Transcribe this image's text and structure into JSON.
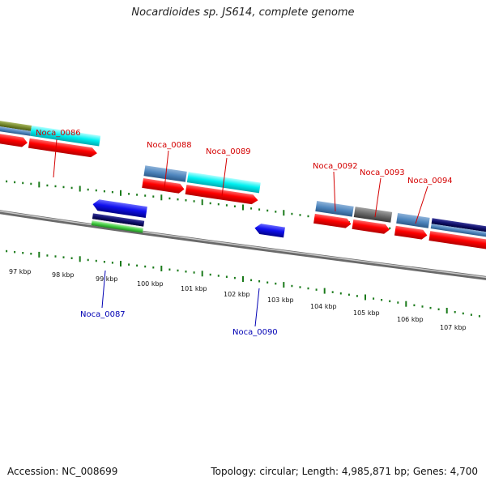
{
  "title": "Nocardioides sp. JS614, complete genome",
  "footer": {
    "accession": "Accession: NC_008699",
    "summary": "Topology: circular; Length: 4,985,871 bp; Genes: 4,700"
  },
  "colors": {
    "label_forward": "#d40000",
    "label_reverse": "#0000b4",
    "tick": "#1a7a1a",
    "backbone": "#8a8a8a"
  },
  "scale_labels": [
    "97 kbp",
    "98 kbp",
    "99 kbp",
    "100 kbp",
    "101 kbp",
    "102 kbp",
    "103 kbp",
    "104 kbp",
    "105 kbp",
    "106 kbp",
    "107 kbp"
  ],
  "gene_labels": {
    "forward": [
      "Noca_0086",
      "Noca_0088",
      "Noca_0089",
      "Noca_0092",
      "Noca_0093",
      "Noca_0094"
    ],
    "reverse": [
      "Noca_0087",
      "Noca_0090"
    ]
  }
}
